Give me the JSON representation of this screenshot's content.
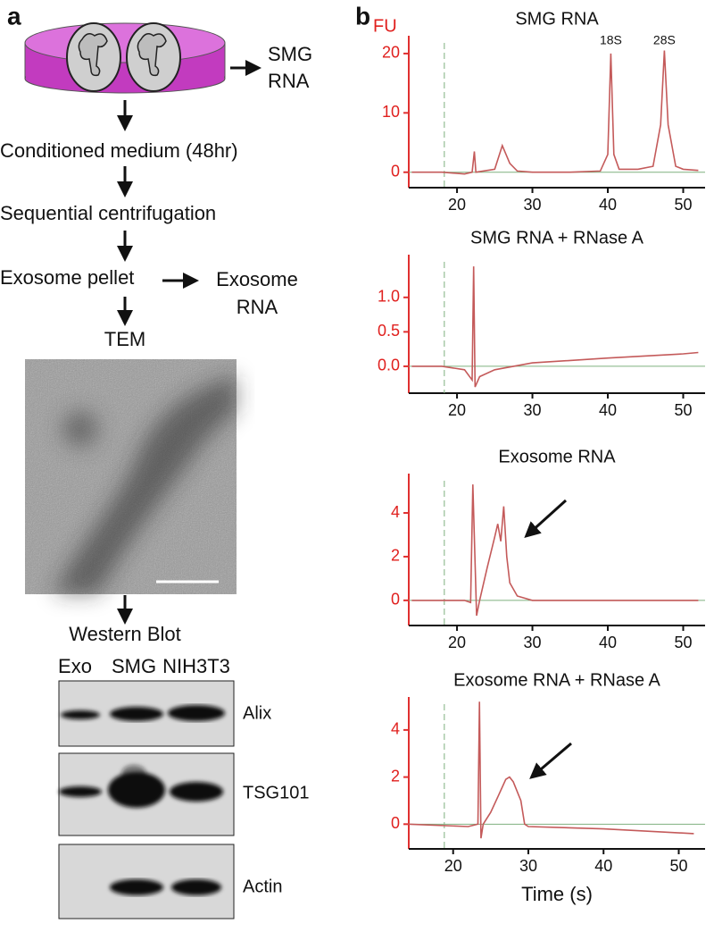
{
  "panel_a": {
    "label": "a",
    "dish_output": [
      "SMG",
      "RNA"
    ],
    "steps": [
      "Conditioned medium (48hr)",
      "Sequential centrifugation",
      "Exosome pellet",
      "TEM"
    ],
    "side_output": [
      "Exosome",
      "RNA"
    ],
    "western_title": "Western Blot",
    "lanes": [
      "Exo",
      "SMG",
      "NIH3T3"
    ],
    "blots": [
      "Alix",
      "TSG101",
      "Actin"
    ]
  },
  "panel_b": {
    "label": "b"
  },
  "chart_data": [
    {
      "type": "line",
      "title": "SMG RNA",
      "y_label": "FU",
      "color": "#c45a5a",
      "x": [
        14,
        18,
        21,
        22,
        22.3,
        22.5,
        25,
        26,
        27,
        28,
        30,
        35,
        39,
        40,
        40.4,
        40.8,
        41.5,
        44,
        46,
        47,
        47.5,
        48,
        49,
        50,
        52
      ],
      "values": [
        0,
        0,
        -0.3,
        0,
        3.5,
        0,
        0.5,
        4.5,
        1.5,
        0.2,
        0,
        0,
        0.2,
        3,
        20,
        3,
        0.5,
        0.5,
        1,
        8,
        20.5,
        8,
        1,
        0.5,
        0.3
      ],
      "xlim": [
        13.6,
        52.9
      ],
      "ylim": [
        -2.6,
        23
      ],
      "xticks": [
        20,
        30,
        40,
        50
      ],
      "yticks": [
        0,
        10,
        20
      ],
      "annotations": [
        {
          "text": "18S",
          "x": 40.4
        },
        {
          "text": "28S",
          "x": 47.5
        }
      ]
    },
    {
      "type": "line",
      "title": "SMG RNA + RNase A",
      "color": "#c45a5a",
      "x": [
        14,
        18,
        21,
        22,
        22.2,
        22.4,
        23,
        25,
        30,
        40,
        50,
        52
      ],
      "values": [
        0,
        0,
        -0.05,
        -0.2,
        1.45,
        -0.3,
        -0.15,
        -0.05,
        0.05,
        0.12,
        0.18,
        0.2
      ],
      "xlim": [
        13.6,
        52.9
      ],
      "ylim": [
        -0.39,
        1.62
      ],
      "xticks": [
        20,
        30,
        40,
        50
      ],
      "yticks": [
        {
          "value": 0,
          "label": "0.0"
        },
        {
          "value": 0.5,
          "label": "0.5"
        },
        {
          "value": 1,
          "label": "1.0"
        }
      ]
    },
    {
      "type": "line",
      "title": "Exosome RNA",
      "color": "#c45a5a",
      "x": [
        14,
        21,
        21.8,
        22.1,
        22.6,
        23,
        24,
        25,
        25.4,
        25.8,
        26.2,
        26.6,
        27,
        28,
        30,
        40,
        52
      ],
      "values": [
        0,
        0,
        -0.1,
        5.3,
        -0.7,
        0,
        1.5,
        2.9,
        3.5,
        2.7,
        4.3,
        2,
        0.8,
        0.2,
        0,
        0,
        0
      ],
      "xlim": [
        13.6,
        52.9
      ],
      "ylim": [
        -1.15,
        5.8
      ],
      "xticks": [
        20,
        30,
        40,
        50
      ],
      "yticks": [
        0,
        2,
        4
      ]
    },
    {
      "type": "line",
      "title": "Exosome RNA + RNase A",
      "x_label": "Time (s)",
      "color": "#c45a5a",
      "x": [
        14,
        22,
        23.3,
        23.5,
        23.7,
        24,
        25,
        26,
        27,
        27.5,
        28,
        29,
        29.5,
        30,
        40,
        52
      ],
      "values": [
        0,
        -0.1,
        0,
        5.2,
        -0.6,
        0,
        0.5,
        1.2,
        1.9,
        2,
        1.8,
        1,
        0,
        -0.1,
        -0.2,
        -0.4
      ],
      "xlim": [
        14.1,
        53.5
      ],
      "ylim": [
        -1.05,
        5.4
      ],
      "xticks": [
        20,
        30,
        40,
        50
      ],
      "yticks": [
        0,
        2,
        4
      ]
    }
  ]
}
